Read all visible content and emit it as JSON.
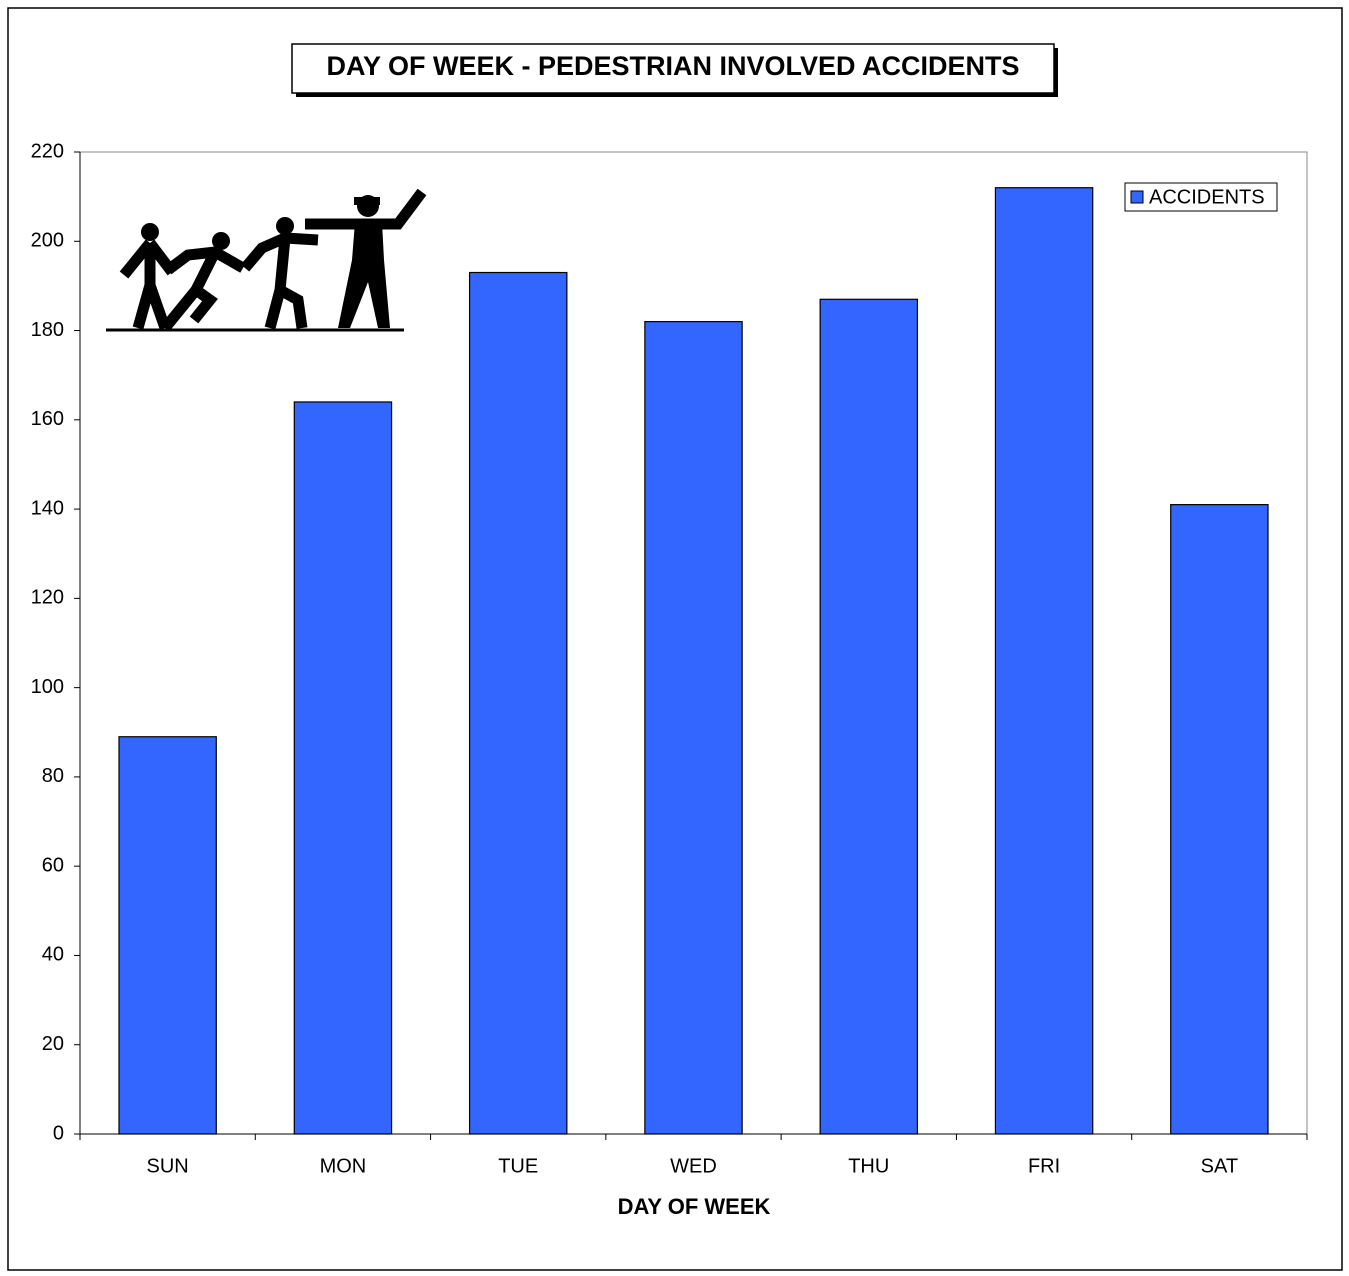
{
  "chart_data": {
    "type": "bar",
    "title": "DAY OF WEEK - PEDESTRIAN INVOLVED ACCIDENTS",
    "x_label": "DAY OF WEEK",
    "categories": [
      "SUN",
      "MON",
      "TUE",
      "WED",
      "THU",
      "FRI",
      "SAT"
    ],
    "series": [
      {
        "name": "ACCIDENTS",
        "color": "#3366ff",
        "values": [
          89,
          164,
          193,
          182,
          187,
          212,
          141
        ]
      }
    ],
    "ylim": [
      0,
      220
    ],
    "yticks": [
      0,
      20,
      40,
      60,
      80,
      100,
      120,
      140,
      160,
      180,
      200,
      220
    ],
    "grid": false,
    "legend": "top-right"
  }
}
